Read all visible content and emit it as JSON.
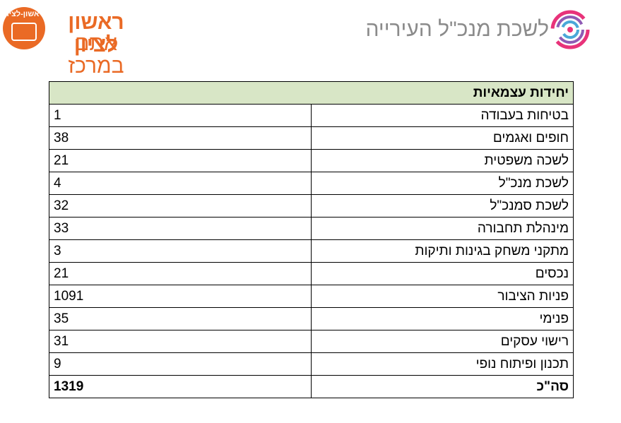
{
  "logo_left": {
    "emblem_text": "ראשון-לציון",
    "line1": "ראשון לציון",
    "line2": "אתם במרכז",
    "color": "#ea6a25"
  },
  "logo_right": {
    "title": "לשכת מנכ\"ל העירייה",
    "icon": "spiral-swirl-icon",
    "colors": [
      "#e8337a",
      "#8f5bb5",
      "#4aa8d8"
    ]
  },
  "table": {
    "header": "יחידות עצמאיות",
    "header_color": "#d8e6c6",
    "rows": [
      {
        "name": "בטיחות בעבודה",
        "value": "1"
      },
      {
        "name": "חופים ואגמים",
        "value": "38"
      },
      {
        "name": "לשכה משפטית",
        "value": "21"
      },
      {
        "name": "לשכת מנכ\"ל",
        "value": "4"
      },
      {
        "name": "לשכת סמנכ\"ל",
        "value": "32"
      },
      {
        "name": "מינהלת תחבורה",
        "value": "33"
      },
      {
        "name": "מתקני משחק בגינות ותיקות",
        "value": "3"
      },
      {
        "name": "נכסים",
        "value": "21"
      },
      {
        "name": "פניות הציבור",
        "value": "1091"
      },
      {
        "name": "פנימי",
        "value": "35"
      },
      {
        "name": "רישוי עסקים",
        "value": "31"
      },
      {
        "name": "תכנון ופיתוח נופי",
        "value": "9"
      }
    ],
    "total": {
      "name": "סה\"כ",
      "value": "1319"
    }
  }
}
